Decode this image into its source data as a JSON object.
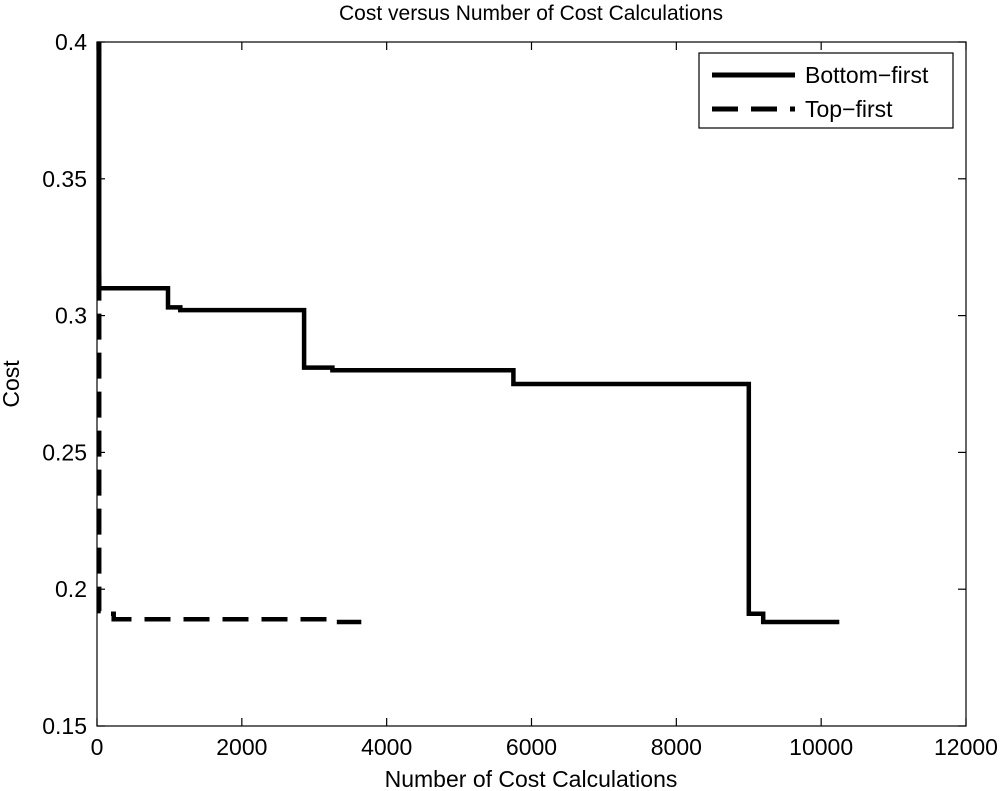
{
  "chart_data": {
    "type": "line",
    "title": "Cost versus Number of Cost Calculations",
    "xlabel": "Number of Cost Calculations",
    "ylabel": "Cost",
    "xlim": [
      0,
      12000
    ],
    "ylim": [
      0.15,
      0.4
    ],
    "xticks": [
      0,
      2000,
      4000,
      6000,
      8000,
      10000,
      12000
    ],
    "yticks": [
      0.15,
      0.2,
      0.25,
      0.3,
      0.35,
      0.4
    ],
    "xtick_labels": [
      "0",
      "2000",
      "4000",
      "6000",
      "8000",
      "10000",
      "12000"
    ],
    "ytick_labels": [
      "0.15",
      "0.2",
      "0.25",
      "0.3",
      "0.35",
      "0.4"
    ],
    "grid": false,
    "legend_position": "top-right",
    "series": [
      {
        "name": "Bottom−first",
        "style": "solid",
        "color": "#000000",
        "x": [
          30,
          30,
          980,
          980,
          1150,
          1150,
          2860,
          2860,
          3250,
          3250,
          5750,
          5750,
          9000,
          9000,
          9200,
          9200,
          10250
        ],
        "y": [
          0.4,
          0.31,
          0.31,
          0.303,
          0.303,
          0.302,
          0.302,
          0.281,
          0.281,
          0.28,
          0.28,
          0.275,
          0.275,
          0.191,
          0.191,
          0.188,
          0.188
        ]
      },
      {
        "name": "Top−first",
        "style": "dashed",
        "color": "#000000",
        "x": [
          30,
          30,
          80,
          80,
          230,
          230,
          3200,
          3200,
          3650
        ],
        "y": [
          0.315,
          0.192,
          0.192,
          0.191,
          0.191,
          0.189,
          0.189,
          0.188,
          0.188
        ]
      }
    ]
  }
}
